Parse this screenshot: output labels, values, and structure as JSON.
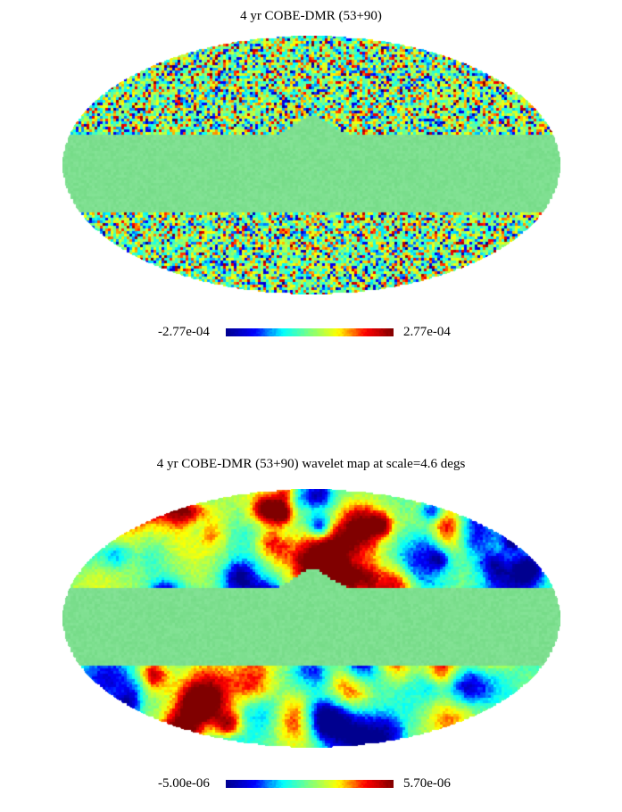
{
  "maps": [
    {
      "title": "4 yr COBE-DMR (53+90)",
      "colorbar": {
        "min_label": "-2.77e-04",
        "max_label": "2.77e-04"
      },
      "texture": "pixel-noise",
      "seed": 11
    },
    {
      "title": "4 yr COBE-DMR (53+90) wavelet map at scale=4.6 degs",
      "colorbar": {
        "min_label": "-5.00e-06",
        "max_label": "5.70e-06"
      },
      "texture": "smooth-blobs",
      "seed": 29
    }
  ],
  "colormap": [
    "#00008f",
    "#0000ff",
    "#00ffff",
    "#7fff7f",
    "#ffff00",
    "#ff0000",
    "#800000"
  ],
  "masked_color": "#7ddf8f"
}
